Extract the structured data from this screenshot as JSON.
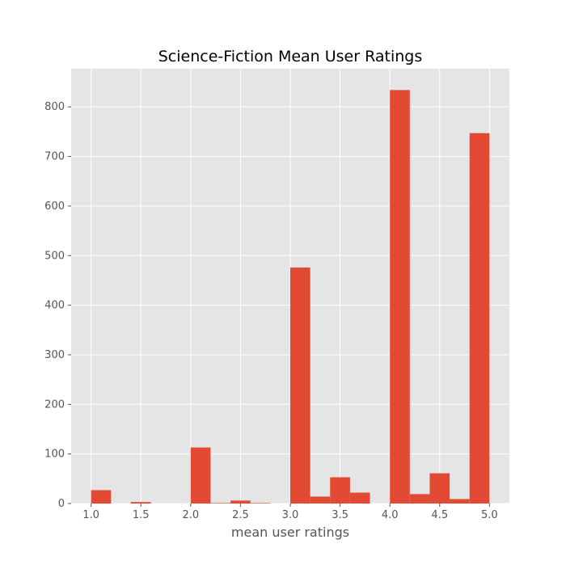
{
  "chart_data": {
    "type": "bar",
    "title": "Science-Fiction Mean User Ratings",
    "xlabel": "mean user ratings",
    "ylabel": "",
    "xlim": [
      0.8,
      5.2
    ],
    "ylim": [
      0,
      877
    ],
    "x_ticks": [
      1.0,
      1.5,
      2.0,
      2.5,
      3.0,
      3.5,
      4.0,
      4.5,
      5.0
    ],
    "x_tick_labels": [
      "1.0",
      "1.5",
      "2.0",
      "2.5",
      "3.0",
      "3.5",
      "4.0",
      "4.5",
      "5.0"
    ],
    "y_ticks": [
      0,
      100,
      200,
      300,
      400,
      500,
      600,
      700,
      800
    ],
    "y_tick_labels": [
      "0",
      "100",
      "200",
      "300",
      "400",
      "500",
      "600",
      "700",
      "800"
    ],
    "bin_edges": [
      1.0,
      1.2,
      1.4,
      1.6,
      1.8,
      2.0,
      2.2,
      2.4,
      2.6,
      2.8,
      3.0,
      3.2,
      3.4,
      3.6,
      3.8,
      4.0,
      4.2,
      4.4,
      4.6,
      4.8,
      5.0
    ],
    "values": [
      27,
      0,
      3,
      0,
      0,
      113,
      1,
      6,
      1,
      0,
      476,
      14,
      53,
      22,
      0,
      834,
      19,
      61,
      9,
      747
    ],
    "grid": true,
    "colors": {
      "bar": "#E24A33",
      "plot_background": "#E5E5E5",
      "grid": "#FFFFFF",
      "text": "#555555",
      "title": "#000000"
    }
  }
}
